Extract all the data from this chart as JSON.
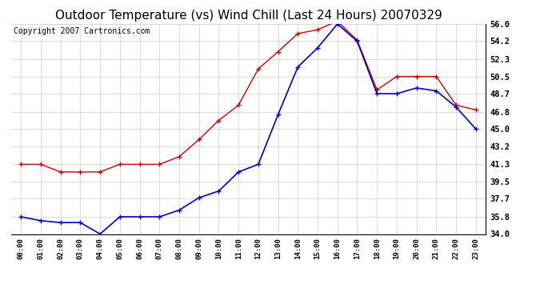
{
  "title": "Outdoor Temperature (vs) Wind Chill (Last 24 Hours) 20070329",
  "copyright": "Copyright 2007 Cartronics.com",
  "hours": [
    "00:00",
    "01:00",
    "02:00",
    "03:00",
    "04:00",
    "05:00",
    "06:00",
    "07:00",
    "08:00",
    "09:00",
    "10:00",
    "11:00",
    "12:00",
    "13:00",
    "14:00",
    "15:00",
    "16:00",
    "17:00",
    "18:00",
    "19:00",
    "20:00",
    "21:00",
    "22:00",
    "23:00"
  ],
  "temp": [
    41.3,
    41.3,
    40.5,
    40.5,
    40.5,
    41.3,
    41.3,
    41.3,
    42.1,
    43.9,
    45.9,
    47.5,
    51.3,
    53.1,
    55.0,
    55.4,
    56.3,
    54.3,
    49.1,
    50.5,
    50.5,
    50.5,
    47.5,
    47.0
  ],
  "wind_chill": [
    35.8,
    35.4,
    35.2,
    35.2,
    34.0,
    35.8,
    35.8,
    35.8,
    36.5,
    37.8,
    38.5,
    40.5,
    41.3,
    46.5,
    51.5,
    53.5,
    56.0,
    54.2,
    48.7,
    48.7,
    49.3,
    49.0,
    47.3,
    45.0
  ],
  "temp_color": "#cc0000",
  "wind_chill_color": "#0000cc",
  "ylim": [
    34.0,
    56.0
  ],
  "yticks": [
    34.0,
    35.8,
    37.7,
    39.5,
    41.3,
    43.2,
    45.0,
    46.8,
    48.7,
    50.5,
    52.3,
    54.2,
    56.0
  ],
  "bg_color": "#ffffff",
  "grid_color": "#cccccc",
  "title_fontsize": 11,
  "copyright_fontsize": 7
}
